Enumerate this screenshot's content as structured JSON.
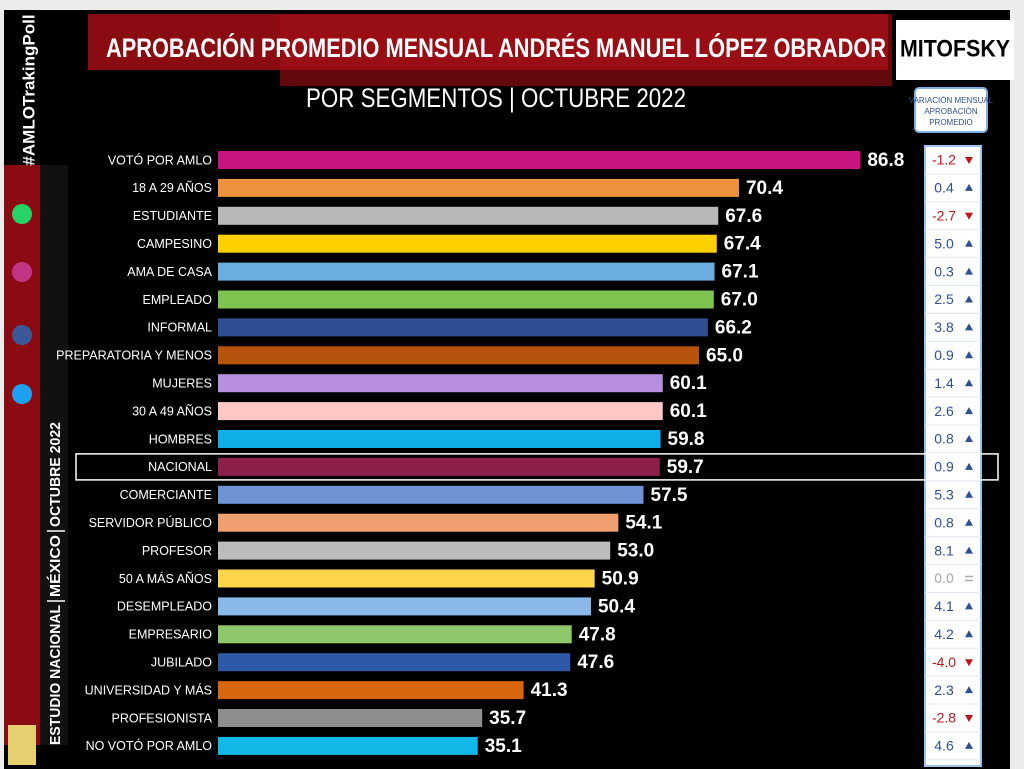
{
  "chart_data": {
    "type": "bar",
    "orientation": "horizontal",
    "title": "APROBACIÓN PROMEDIO MENSUAL ANDRÉS MANUEL LÓPEZ OBRADOR",
    "subtitle": "POR SEGMENTOS | OCTUBRE 2022",
    "categories": [
      "VOTÓ POR AMLO",
      "18 A 29 AÑOS",
      "ESTUDIANTE",
      "CAMPESINO",
      "AMA DE CASA",
      "EMPLEADO",
      "INFORMAL",
      "PREPARATORIA Y MENOS",
      "MUJERES",
      "30 A 49 AÑOS",
      "HOMBRES",
      "NACIONAL",
      "COMERCIANTE",
      "SERVIDOR PÚBLICO",
      "PROFESOR",
      "50 A MÁS AÑOS",
      "DESEMPLEADO",
      "EMPRESARIO",
      "JUBILADO",
      "UNIVERSIDAD Y MÁS",
      "PROFESIONISTA",
      "NO VOTÓ POR AMLO"
    ],
    "values": [
      86.8,
      70.4,
      67.6,
      67.4,
      67.1,
      67.0,
      66.2,
      65.0,
      60.1,
      60.1,
      59.8,
      59.7,
      57.5,
      54.1,
      53.0,
      50.9,
      50.4,
      47.8,
      47.6,
      41.3,
      35.7,
      35.1
    ],
    "value_labels": [
      "86.8",
      "70.4",
      "67.6",
      "67.4",
      "67.1",
      "67.0",
      "66.2",
      "65.0",
      "60.1",
      "60.1",
      "59.8",
      "59.7",
      "57.5",
      "54.1",
      "53.0",
      "50.9",
      "50.4",
      "47.8",
      "47.6",
      "41.3",
      "35.7",
      "35.1"
    ],
    "colors": [
      "#c8157f",
      "#f0913e",
      "#b8b8b8",
      "#ffd000",
      "#6aaee0",
      "#7dc451",
      "#2e4f94",
      "#b8530e",
      "#b88ee0",
      "#ffc6c6",
      "#0fb0ea",
      "#8e1f4a",
      "#6f93d4",
      "#f0a070",
      "#bcbcbc",
      "#ffd54a",
      "#8ab8e8",
      "#8fc86a",
      "#2e58a8",
      "#d8660e",
      "#8e8e8e",
      "#11b8e8"
    ],
    "highlight": "NACIONAL",
    "variation": {
      "header": [
        "VARIACIÓN MENSUAL",
        "APROBACIÓN",
        "PROMEDIO"
      ],
      "values": [
        -1.2,
        0.4,
        -2.7,
        5.0,
        0.3,
        2.5,
        3.8,
        0.9,
        1.4,
        2.6,
        0.8,
        0.9,
        5.3,
        0.8,
        8.1,
        0.0,
        4.1,
        4.2,
        -4.0,
        2.3,
        -2.8,
        4.6
      ],
      "value_labels": [
        "-1.2",
        "0.4",
        "-2.7",
        "5.0",
        "0.3",
        "2.5",
        "3.8",
        "0.9",
        "1.4",
        "2.6",
        "0.8",
        "0.9",
        "5.3",
        "0.8",
        "8.1",
        "0.0",
        "4.1",
        "4.2",
        "-4.0",
        "2.3",
        "-2.8",
        "4.6"
      ]
    }
  },
  "branding": {
    "hashtag": "#AMLOTrakingPoll",
    "logo": "MITOFSKY",
    "sidebar": [
      "ESTUDIO NACIONAL",
      "MÉXICO",
      "OCTUBRE 2022"
    ]
  }
}
